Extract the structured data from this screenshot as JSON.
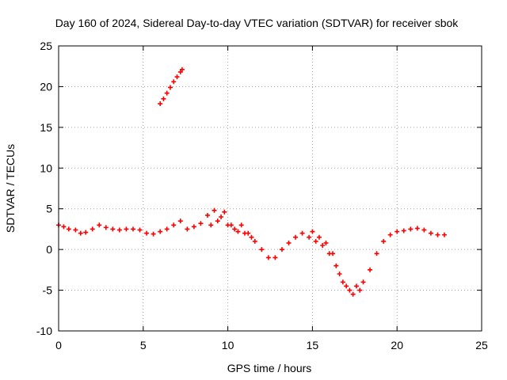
{
  "chart_data": {
    "type": "scatter",
    "title": "Day 160 of 2024, Sidereal Day-to-day VTEC variation (SDTVAR) for receiver sbok",
    "xlabel": "GPS time / hours",
    "ylabel": "SDTVAR / TECUs",
    "xlim": [
      0,
      25
    ],
    "ylim": [
      -10,
      25
    ],
    "xticks": [
      0,
      5,
      10,
      15,
      20,
      25
    ],
    "yticks": [
      -10,
      -5,
      0,
      5,
      10,
      15,
      20,
      25
    ],
    "grid": true,
    "marker": "+",
    "series": [
      {
        "name": "SDTVAR main",
        "color": "#ff0000",
        "points": [
          [
            0.0,
            3.0
          ],
          [
            0.3,
            2.8
          ],
          [
            0.6,
            2.5
          ],
          [
            1.0,
            2.4
          ],
          [
            1.3,
            2.0
          ],
          [
            1.6,
            2.1
          ],
          [
            2.0,
            2.5
          ],
          [
            2.4,
            3.0
          ],
          [
            2.8,
            2.7
          ],
          [
            3.2,
            2.5
          ],
          [
            3.6,
            2.4
          ],
          [
            4.0,
            2.5
          ],
          [
            4.4,
            2.5
          ],
          [
            4.8,
            2.4
          ],
          [
            5.2,
            2.0
          ],
          [
            5.6,
            1.9
          ],
          [
            6.0,
            2.2
          ],
          [
            6.4,
            2.5
          ],
          [
            6.8,
            3.0
          ],
          [
            7.2,
            3.5
          ],
          [
            7.6,
            2.5
          ],
          [
            8.0,
            2.8
          ],
          [
            8.4,
            3.2
          ],
          [
            8.8,
            4.2
          ],
          [
            9.2,
            4.8
          ],
          [
            9.6,
            4.0
          ],
          [
            10.0,
            3.0
          ],
          [
            10.4,
            2.5
          ],
          [
            10.8,
            3.0
          ],
          [
            11.2,
            2.0
          ],
          [
            11.6,
            1.0
          ],
          [
            12.0,
            0.0
          ],
          [
            12.4,
            -1.0
          ],
          [
            12.8,
            -1.0
          ],
          [
            13.2,
            0.0
          ],
          [
            13.6,
            0.8
          ],
          [
            14.0,
            1.5
          ],
          [
            14.4,
            2.0
          ],
          [
            14.8,
            1.5
          ],
          [
            15.2,
            1.0
          ],
          [
            15.6,
            0.5
          ],
          [
            16.0,
            -0.5
          ],
          [
            16.4,
            -2.0
          ],
          [
            16.8,
            -4.0
          ],
          [
            17.2,
            -5.0
          ],
          [
            17.6,
            -4.5
          ],
          [
            18.0,
            -4.0
          ],
          [
            18.4,
            -2.5
          ],
          [
            18.8,
            -0.5
          ],
          [
            19.2,
            1.0
          ],
          [
            19.6,
            1.8
          ],
          [
            20.0,
            2.2
          ],
          [
            20.4,
            2.3
          ],
          [
            20.8,
            2.5
          ],
          [
            21.2,
            2.6
          ],
          [
            21.6,
            2.4
          ],
          [
            22.0,
            2.0
          ],
          [
            22.4,
            1.8
          ],
          [
            22.8,
            1.8
          ]
        ]
      },
      {
        "name": "SDTVAR upper branch",
        "color": "#ff0000",
        "points": [
          [
            6.0,
            17.9
          ],
          [
            6.2,
            18.5
          ],
          [
            6.4,
            19.2
          ],
          [
            6.6,
            19.9
          ],
          [
            6.8,
            20.6
          ],
          [
            7.0,
            21.2
          ],
          [
            7.2,
            21.8
          ],
          [
            7.3,
            22.1
          ]
        ]
      },
      {
        "name": "SDTVAR secondary branch",
        "color": "#ff0000",
        "points": [
          [
            9.0,
            3.0
          ],
          [
            9.4,
            3.5
          ],
          [
            9.8,
            4.6
          ],
          [
            10.2,
            3.0
          ],
          [
            10.6,
            2.2
          ],
          [
            11.0,
            2.0
          ],
          [
            11.4,
            1.5
          ],
          [
            15.0,
            2.2
          ],
          [
            15.4,
            1.5
          ],
          [
            15.8,
            0.8
          ],
          [
            16.2,
            -0.5
          ],
          [
            16.6,
            -3.0
          ],
          [
            17.0,
            -4.5
          ],
          [
            17.4,
            -5.5
          ],
          [
            17.8,
            -5.0
          ]
        ]
      }
    ]
  }
}
